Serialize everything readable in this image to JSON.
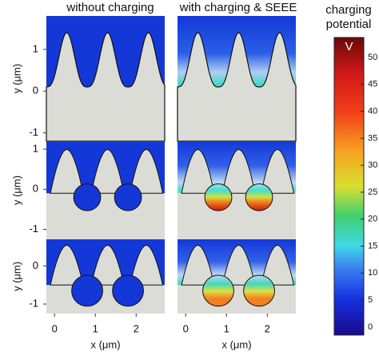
{
  "chart_data": {
    "type": "field-map",
    "column_titles": [
      "without charging",
      "with charging & SEEE"
    ],
    "xlabel": "x (μm)",
    "ylabel": "y (μm)",
    "xlim": [
      -0.2,
      2.7
    ],
    "xticks": [
      0,
      1,
      2
    ],
    "rows": [
      {
        "ylim": [
          -1.2,
          1.8
        ],
        "yticks": [
          -1,
          0,
          1
        ]
      },
      {
        "ylim": [
          -1.25,
          1.2
        ],
        "yticks": [
          -1,
          0,
          1
        ]
      },
      {
        "ylim": [
          -1.25,
          0.7
        ],
        "yticks": [
          -1,
          0
        ]
      }
    ],
    "colorbar": {
      "title": [
        "charging",
        "potential"
      ],
      "unit": "V",
      "clim": [
        -1.5,
        53.7
      ],
      "ticks": [
        0,
        5,
        10,
        15,
        20,
        25,
        30,
        35,
        40,
        45,
        50
      ]
    }
  }
}
